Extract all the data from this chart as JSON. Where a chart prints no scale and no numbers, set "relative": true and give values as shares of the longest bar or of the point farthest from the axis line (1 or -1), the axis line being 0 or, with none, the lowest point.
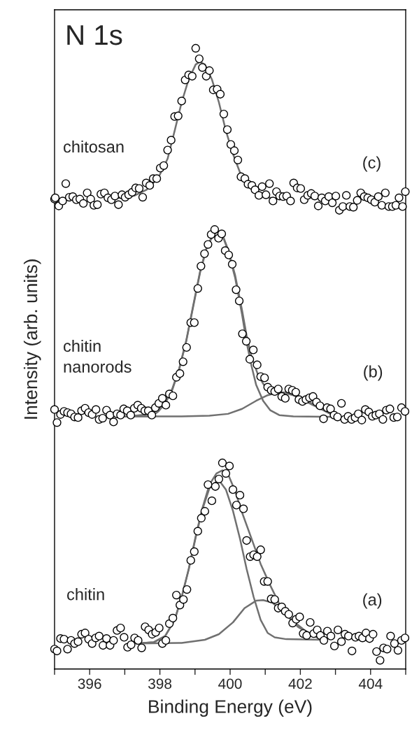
{
  "chart_data": {
    "type": "scatter",
    "title": "N 1s",
    "xlabel": "Binding Energy (eV)",
    "ylabel": "Intensity (arb. units)",
    "relative": true,
    "tick_labels": "x",
    "xlim": [
      395,
      405
    ],
    "xticks": [
      {
        "value": 395,
        "label": null
      },
      396,
      {
        "value": 397,
        "label": null
      },
      398,
      {
        "value": 399,
        "label": null
      },
      400,
      {
        "value": 401,
        "label": null
      },
      402,
      {
        "value": 403,
        "label": null
      },
      404,
      {
        "value": 405,
        "label": null
      }
    ],
    "annotations": [
      "chitosan",
      "(c)",
      "chitin\nnanorods",
      "(b)",
      "chitin",
      "(a)"
    ],
    "series": [
      {
        "color": "#000000",
        "marker": "circle",
        "x": [
          395.0,
          395.02,
          395.12,
          395.23,
          395.32,
          395.42,
          395.52,
          395.62,
          395.72,
          395.82,
          395.93,
          396.03,
          396.12,
          396.22,
          396.32,
          396.42,
          396.52,
          396.62,
          396.72,
          396.82,
          396.92,
          397.01,
          397.11,
          397.21,
          397.31,
          397.41,
          397.51,
          397.61,
          397.71,
          397.81,
          397.91,
          398.01,
          398.11,
          398.22,
          398.32,
          398.42,
          398.52,
          398.62,
          398.72,
          398.82,
          398.92,
          399.02,
          399.12,
          399.21,
          399.32,
          399.41,
          399.52,
          399.63,
          399.72,
          399.82,
          399.92,
          400.02,
          400.12,
          400.22,
          400.31,
          400.42,
          400.51,
          400.62,
          400.71,
          400.82,
          400.91,
          401.02,
          401.12,
          401.22,
          401.32,
          401.41,
          401.51,
          401.61,
          401.72,
          401.81,
          401.91,
          402.01,
          402.11,
          402.21,
          402.31,
          402.41,
          402.51,
          402.61,
          402.71,
          402.81,
          402.91,
          403.01,
          403.11,
          403.21,
          403.31,
          403.41,
          403.51,
          403.62,
          403.72,
          403.82,
          403.92,
          404.02,
          404.12,
          404.22,
          404.32,
          404.42,
          404.52,
          404.62,
          404.72,
          404.81,
          404.91,
          404.99
        ],
        "values": [
          0.757,
          0.759,
          0.746,
          0.754,
          0.782,
          0.76,
          0.761,
          0.756,
          0.757,
          0.75,
          0.767,
          0.757,
          0.747,
          0.748,
          0.765,
          0.767,
          0.759,
          0.756,
          0.762,
          0.748,
          0.764,
          0.76,
          0.764,
          0.768,
          0.775,
          0.774,
          0.76,
          0.783,
          0.779,
          0.79,
          0.79,
          0.807,
          0.811,
          0.836,
          0.852,
          0.89,
          0.891,
          0.915,
          0.949,
          0.957,
          0.955,
          1.0,
          0.983,
          0.969,
          0.955,
          0.964,
          0.933,
          0.934,
          0.926,
          0.894,
          0.869,
          0.845,
          0.835,
          0.82,
          0.793,
          0.79,
          0.781,
          0.779,
          0.772,
          0.763,
          0.777,
          0.764,
          0.782,
          0.754,
          0.769,
          0.762,
          0.761,
          0.762,
          0.754,
          0.783,
          0.775,
          0.774,
          0.756,
          0.763,
          0.766,
          0.762,
          0.746,
          0.759,
          0.754,
          0.761,
          0.751,
          0.762,
          0.739,
          0.745,
          0.763,
          0.745,
          0.744,
          0.755,
          0.767,
          0.761,
          0.759,
          0.756,
          0.752,
          0.761,
          0.747,
          0.767,
          0.745,
          0.745,
          0.747,
          0.759,
          0.745,
          0.769
        ]
      },
      {
        "type": "line",
        "color": "#707070",
        "x": [
          396.56,
          396.96,
          397.29,
          397.62,
          397.96,
          398.22,
          398.42,
          398.62,
          398.82,
          399.02,
          399.14,
          399.28,
          399.48,
          399.68,
          399.88,
          400.08,
          400.28,
          400.47,
          400.74,
          401.0,
          401.27,
          401.67
        ],
        "values": [
          0.759,
          0.759,
          0.763,
          0.772,
          0.792,
          0.822,
          0.867,
          0.913,
          0.95,
          0.974,
          0.978,
          0.974,
          0.95,
          0.913,
          0.867,
          0.83,
          0.8,
          0.781,
          0.768,
          0.76,
          0.758,
          0.757
        ]
      },
      {
        "color": "#000000",
        "marker": "circle",
        "x": [
          395.0,
          395.07,
          395.17,
          395.27,
          395.37,
          395.47,
          395.57,
          395.67,
          395.77,
          395.87,
          395.97,
          396.07,
          396.18,
          396.27,
          396.37,
          396.48,
          396.58,
          396.68,
          396.78,
          396.88,
          396.97,
          397.07,
          397.17,
          397.27,
          397.37,
          397.47,
          397.57,
          397.67,
          397.77,
          397.87,
          397.97,
          398.07,
          398.17,
          398.27,
          398.37,
          398.47,
          398.57,
          398.66,
          398.76,
          398.88,
          398.98,
          399.08,
          399.17,
          399.27,
          399.37,
          399.46,
          399.56,
          399.67,
          399.76,
          399.86,
          399.96,
          400.06,
          400.17,
          400.26,
          400.35,
          400.46,
          400.56,
          400.66,
          400.77,
          400.87,
          400.98,
          401.07,
          401.17,
          401.27,
          401.37,
          401.47,
          401.57,
          401.67,
          401.77,
          401.87,
          401.96,
          402.06,
          402.16,
          402.26,
          402.36,
          402.46,
          402.56,
          402.66,
          402.76,
          402.86,
          402.96,
          403.06,
          403.17,
          403.26,
          403.36,
          403.46,
          403.56,
          403.65,
          403.75,
          403.85,
          403.95,
          404.05,
          404.15,
          404.25,
          404.35,
          404.45,
          404.55,
          404.66,
          404.76,
          404.88,
          404.98
        ],
        "values": [
          0.418,
          0.397,
          0.41,
          0.415,
          0.413,
          0.411,
          0.406,
          0.405,
          0.416,
          0.42,
          0.413,
          0.41,
          0.418,
          0.402,
          0.404,
          0.417,
          0.409,
          0.398,
          0.411,
          0.409,
          0.419,
          0.416,
          0.409,
          0.42,
          0.425,
          0.42,
          0.416,
          0.416,
          0.409,
          0.421,
          0.428,
          0.436,
          0.425,
          0.443,
          0.44,
          0.47,
          0.476,
          0.495,
          0.518,
          0.558,
          0.558,
          0.613,
          0.649,
          0.669,
          0.684,
          0.7,
          0.708,
          0.694,
          0.701,
          0.674,
          0.667,
          0.652,
          0.611,
          0.593,
          0.54,
          0.528,
          0.499,
          0.514,
          0.49,
          0.471,
          0.469,
          0.454,
          0.449,
          0.447,
          0.451,
          0.439,
          0.436,
          0.451,
          0.449,
          0.446,
          0.434,
          0.431,
          0.434,
          0.437,
          0.439,
          0.43,
          0.424,
          0.403,
          0.421,
          0.419,
          0.409,
          0.406,
          0.428,
          0.402,
          0.407,
          0.402,
          0.405,
          0.411,
          0.401,
          0.418,
          0.414,
          0.407,
          0.409,
          0.411,
          0.402,
          0.417,
          0.419,
          0.405,
          0.406,
          0.421,
          0.415
        ]
      },
      {
        "type": "line",
        "color": "#707070",
        "x": [
          396.9,
          397.29,
          397.76,
          397.96,
          398.15,
          398.35,
          398.55,
          398.75,
          398.95,
          399.15,
          399.35,
          399.55,
          399.65,
          399.78,
          399.94,
          400.14,
          400.34,
          400.47,
          400.61,
          400.8,
          401.0,
          401.27,
          401.53,
          401.8,
          402.06,
          402.33,
          402.59,
          402.86,
          403.09
        ],
        "values": [
          0.407,
          0.408,
          0.411,
          0.419,
          0.43,
          0.451,
          0.484,
          0.529,
          0.586,
          0.642,
          0.683,
          0.702,
          0.705,
          0.7,
          0.676,
          0.635,
          0.578,
          0.537,
          0.503,
          0.473,
          0.454,
          0.445,
          0.445,
          0.441,
          0.434,
          0.426,
          0.419,
          0.411,
          0.406
        ]
      },
      {
        "type": "line",
        "color": "#707070",
        "x": [
          396.9,
          397.76,
          397.96,
          398.15,
          398.35,
          398.55,
          398.75,
          398.95,
          399.15,
          399.35,
          399.55,
          399.65,
          399.78,
          399.94,
          400.14,
          400.34,
          400.47,
          400.61,
          400.74,
          400.94,
          401.14,
          401.4,
          401.8,
          403.09
        ],
        "values": [
          0.407,
          0.407,
          0.415,
          0.428,
          0.449,
          0.483,
          0.528,
          0.584,
          0.64,
          0.682,
          0.701,
          0.704,
          0.699,
          0.674,
          0.631,
          0.571,
          0.526,
          0.488,
          0.458,
          0.432,
          0.417,
          0.409,
          0.407,
          0.406
        ]
      },
      {
        "type": "line",
        "color": "#707070",
        "x": [
          396.9,
          398.62,
          399.41,
          399.94,
          400.34,
          400.74,
          401.07,
          401.4,
          401.67,
          401.93,
          402.26,
          402.59,
          402.86,
          403.09
        ],
        "values": [
          0.407,
          0.407,
          0.408,
          0.411,
          0.419,
          0.432,
          0.441,
          0.446,
          0.445,
          0.439,
          0.43,
          0.419,
          0.411,
          0.406
        ]
      },
      {
        "color": "#000000",
        "marker": "circle",
        "x": [
          395.0,
          395.07,
          395.17,
          395.27,
          395.37,
          395.47,
          395.57,
          395.67,
          395.77,
          395.87,
          395.97,
          396.07,
          396.17,
          396.27,
          396.38,
          396.48,
          396.58,
          396.68,
          396.78,
          396.88,
          396.98,
          397.08,
          397.18,
          397.28,
          397.38,
          397.48,
          397.58,
          397.68,
          397.78,
          397.88,
          397.98,
          398.07,
          398.17,
          398.27,
          398.37,
          398.47,
          398.57,
          398.67,
          398.77,
          398.88,
          398.98,
          399.08,
          399.18,
          399.28,
          399.37,
          399.48,
          399.58,
          399.68,
          399.78,
          399.88,
          399.98,
          400.08,
          400.18,
          400.28,
          400.38,
          400.47,
          400.57,
          400.67,
          400.77,
          400.87,
          400.97,
          401.07,
          401.17,
          401.27,
          401.37,
          401.47,
          401.57,
          401.67,
          401.78,
          401.88,
          401.98,
          402.08,
          402.18,
          402.28,
          402.38,
          402.48,
          402.57,
          402.67,
          402.77,
          402.87,
          402.97,
          403.07,
          403.17,
          403.27,
          403.37,
          403.47,
          403.57,
          403.67,
          403.77,
          403.87,
          403.97,
          404.07,
          404.17,
          404.27,
          404.37,
          404.47,
          404.57,
          404.68,
          404.78,
          404.88,
          404.98
        ],
        "values": [
          0.032,
          0.029,
          0.049,
          0.048,
          0.032,
          0.046,
          0.041,
          0.044,
          0.056,
          0.058,
          0.048,
          0.041,
          0.05,
          0.053,
          0.038,
          0.049,
          0.038,
          0.046,
          0.062,
          0.066,
          0.051,
          0.035,
          0.039,
          0.05,
          0.046,
          0.034,
          0.068,
          0.063,
          0.056,
          0.059,
          0.066,
          0.041,
          0.046,
          0.073,
          0.082,
          0.119,
          0.103,
          0.112,
          0.128,
          0.175,
          0.189,
          0.222,
          0.243,
          0.254,
          0.297,
          0.271,
          0.294,
          0.306,
          0.332,
          0.315,
          0.327,
          0.289,
          0.264,
          0.28,
          0.258,
          0.207,
          0.181,
          0.184,
          0.181,
          0.192,
          0.141,
          0.141,
          0.113,
          0.112,
          0.098,
          0.1,
          0.093,
          0.088,
          0.074,
          0.08,
          0.084,
          0.057,
          0.054,
          0.075,
          0.057,
          0.063,
          0.054,
          0.046,
          0.061,
          0.053,
          0.037,
          0.063,
          0.044,
          0.056,
          0.053,
          0.029,
          0.051,
          0.053,
          0.05,
          0.058,
          0.049,
          0.056,
          0.028,
          0.014,
          0.034,
          0.032,
          0.053,
          0.041,
          0.03,
          0.046,
          0.05
        ]
      },
      {
        "type": "line",
        "color": "#707070",
        "x": [
          397.33,
          397.82,
          398.15,
          398.42,
          398.62,
          398.82,
          399.02,
          399.21,
          399.41,
          399.61,
          399.78,
          399.94,
          400.14,
          400.34,
          400.61,
          400.87,
          401.14,
          401.4,
          401.67,
          401.93,
          402.26,
          402.66
        ],
        "values": [
          0.041,
          0.043,
          0.053,
          0.079,
          0.116,
          0.161,
          0.214,
          0.259,
          0.297,
          0.315,
          0.32,
          0.314,
          0.287,
          0.252,
          0.21,
          0.169,
          0.135,
          0.105,
          0.083,
          0.068,
          0.056,
          0.047
        ]
      },
      {
        "type": "line",
        "color": "#707070",
        "x": [
          397.33,
          397.82,
          398.15,
          398.42,
          398.62,
          398.82,
          399.02,
          399.21,
          399.41,
          399.61,
          399.71,
          399.88,
          400.08,
          400.28,
          400.47,
          400.67,
          400.87,
          401.07,
          401.27,
          401.6,
          402.66
        ],
        "values": [
          0.041,
          0.043,
          0.053,
          0.079,
          0.116,
          0.16,
          0.212,
          0.257,
          0.291,
          0.302,
          0.302,
          0.289,
          0.255,
          0.21,
          0.161,
          0.116,
          0.079,
          0.058,
          0.051,
          0.048,
          0.047
        ]
      },
      {
        "type": "line",
        "color": "#707070",
        "x": [
          397.33,
          398.62,
          399.28,
          399.68,
          400.08,
          400.41,
          400.74,
          400.94,
          401.2,
          401.47,
          401.8,
          402.13,
          402.4,
          402.66
        ],
        "values": [
          0.041,
          0.042,
          0.047,
          0.056,
          0.075,
          0.098,
          0.11,
          0.111,
          0.107,
          0.094,
          0.077,
          0.062,
          0.053,
          0.047
        ]
      }
    ]
  }
}
